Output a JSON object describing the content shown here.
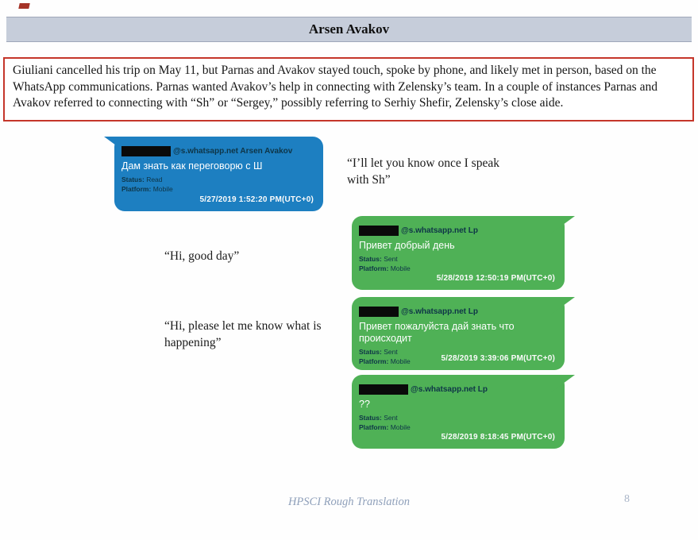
{
  "page": {
    "title": "Arsen Avakov",
    "summary": "Giuliani cancelled his trip on May 11, but Parnas and Avakov stayed touch, spoke by phone, and likely met in person, based on the WhatsApp communications.  Parnas wanted Avakov’s help in connecting with Zelensky’s team. In a couple of instances Parnas and Avakov referred to connecting with “Sh” or “Sergey,” possibly referring to Serhiy Shefir, Zelensky’s close aide.",
    "footer_text": "HPSCI Rough Translation",
    "page_number": "8"
  },
  "labels": {
    "status": "Status:",
    "platform": "Platform:"
  },
  "colors": {
    "title_bar_bg": "#c6cdda",
    "summary_border": "#c5362a",
    "incoming_bubble": "#1d7fc1",
    "outgoing_bubble": "#4fb156",
    "bubble_meta_text": "#0e3547",
    "redaction": "#0a0a0a",
    "footer_text": "#8fa0ba"
  },
  "messages": [
    {
      "direction": "incoming",
      "sender": "@s.whatsapp.net Arsen Avakov",
      "body": "Дам знать как переговорю с Ш",
      "status": "Read",
      "platform": "Mobile",
      "timestamp": "5/27/2019 1:52:20 PM(UTC+0)",
      "translation": "“I’ll let you know once I speak with Sh”"
    },
    {
      "direction": "outgoing",
      "sender": "@s.whatsapp.net Lp",
      "body": "Привет добрый день",
      "status": "Sent",
      "platform": "Mobile",
      "timestamp": "5/28/2019 12:50:19 PM(UTC+0)",
      "translation": "“Hi, good day”"
    },
    {
      "direction": "outgoing",
      "sender": "@s.whatsapp.net Lp",
      "body": "Привет пожалуйста дай знать что происходит",
      "status": "Sent",
      "platform": "Mobile",
      "timestamp": "5/28/2019 3:39:06 PM(UTC+0)",
      "translation": "“Hi, please let me know what is happening”"
    },
    {
      "direction": "outgoing",
      "sender": "@s.whatsapp.net Lp",
      "body": "??",
      "status": "Sent",
      "platform": "Mobile",
      "timestamp": "5/28/2019 8:18:45 PM(UTC+0)"
    }
  ]
}
